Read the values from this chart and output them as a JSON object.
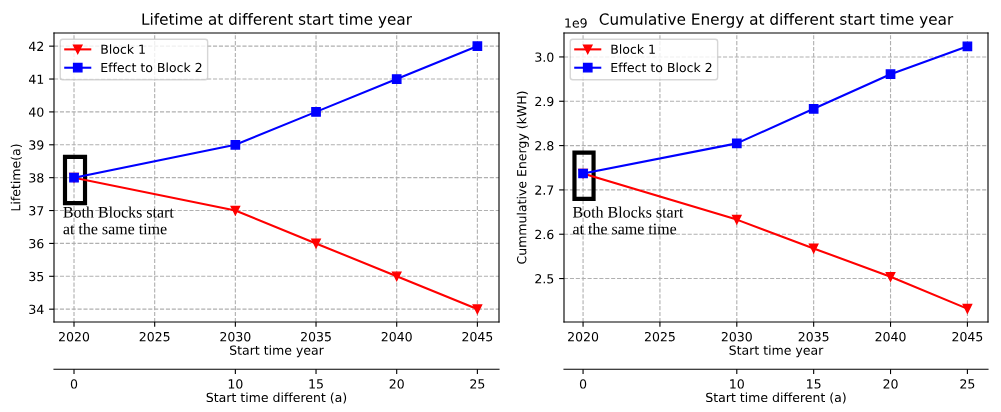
{
  "chart_data": [
    {
      "type": "line",
      "title": "Lifetime at different start time year",
      "xlabel": "Start time year",
      "ylabel": "Lifetime(a)",
      "x2label": "Start time different (a)",
      "x": [
        2020,
        2030,
        2035,
        2040,
        2045
      ],
      "series": [
        {
          "name": "Block 1",
          "color": "#ff0000",
          "marker": "triangle",
          "values": [
            38,
            37,
            36,
            35,
            34
          ]
        },
        {
          "name": "Effect to Block 2",
          "color": "#0000ff",
          "marker": "square",
          "values": [
            38,
            39,
            40,
            41,
            42
          ]
        }
      ],
      "xlim": [
        2018.76,
        2046.34
      ],
      "xticks": [
        2020,
        2025,
        2030,
        2035,
        2040,
        2045
      ],
      "x2lim": [
        -1.24,
        26.34
      ],
      "x2ticks": [
        0,
        10,
        15,
        20,
        25
      ],
      "ylim": [
        33.61,
        42.4
      ],
      "yticks": [
        34,
        35,
        36,
        37,
        38,
        39,
        40,
        41,
        42
      ],
      "annotations": [
        "Both Blocks start\nat the same time"
      ],
      "grid": true,
      "legend": "top left",
      "line_style": "solid"
    },
    {
      "type": "line",
      "title": "Cumulative Energy at different start time year",
      "xlabel": "Start time year",
      "ylabel": "Cummulative Energy (kWH)",
      "x2label": "Start time different (a)",
      "x": [
        2020,
        2030,
        2035,
        2040,
        2045
      ],
      "series": [
        {
          "name": "Block 1",
          "color": "#ff0000",
          "marker": "triangle",
          "values": [
            2.737,
            2.633,
            2.568,
            2.504,
            2.432
          ]
        },
        {
          "name": "Effect to Block 2",
          "color": "#0000ff",
          "marker": "square",
          "values": [
            2.737,
            2.805,
            2.883,
            2.961,
            3.024
          ]
        }
      ],
      "xlim": [
        2018.76,
        2046.34
      ],
      "xticks": [
        2020,
        2025,
        2030,
        2035,
        2040,
        2045
      ],
      "x2lim": [
        -1.24,
        26.34
      ],
      "x2ticks": [
        0,
        10,
        15,
        20,
        25
      ],
      "ylim": [
        2.402,
        3.054
      ],
      "yticks": [
        2.5,
        2.6,
        2.7,
        2.8,
        2.9,
        {
          "value": 3.0,
          "label": "3.0"
        }
      ],
      "annotations": [
        "1e9",
        "Both Blocks start\nat the same time"
      ],
      "grid": true,
      "legend": "top left",
      "line_style": "solid"
    }
  ]
}
